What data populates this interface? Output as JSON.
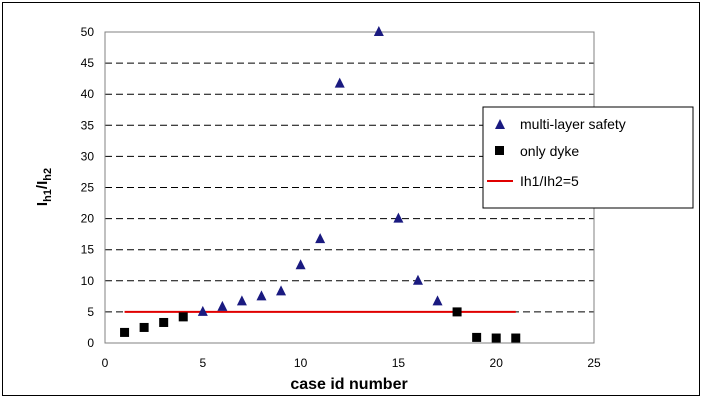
{
  "chart_data": {
    "type": "scatter",
    "xlabel": "case id number",
    "ylabel_main": "I",
    "ylabel_sub1": "h1",
    "ylabel_sep": "/I",
    "ylabel_sub2": "h2",
    "xlim": [
      0,
      25
    ],
    "ylim": [
      0,
      50
    ],
    "xticks": [
      0,
      5,
      10,
      15,
      20,
      25
    ],
    "yticks": [
      0,
      5,
      10,
      15,
      20,
      25,
      30,
      35,
      40,
      45,
      50
    ],
    "grid": "horizontal dashed",
    "legend_position": "right",
    "series": [
      {
        "name": "multi-layer safety",
        "marker": "triangle",
        "color": "#1a1a80",
        "x": [
          5,
          6,
          7,
          8,
          9,
          10,
          11,
          12,
          14,
          15,
          16,
          17
        ],
        "y": [
          5,
          5.8,
          6.7,
          7.5,
          8.3,
          12.5,
          16.7,
          41.7,
          50,
          20,
          10,
          6.7
        ]
      },
      {
        "name": "only dyke",
        "marker": "square",
        "color": "#000000",
        "x": [
          1,
          2,
          3,
          4,
          18,
          19,
          20,
          21
        ],
        "y": [
          1.7,
          2.5,
          3.3,
          4.2,
          5,
          0.9,
          0.8,
          0.8
        ]
      },
      {
        "name": "Ih1/Ih2=5",
        "marker": "line",
        "color": "#e00000",
        "x": [
          1,
          21
        ],
        "y": [
          5,
          5
        ]
      }
    ]
  }
}
